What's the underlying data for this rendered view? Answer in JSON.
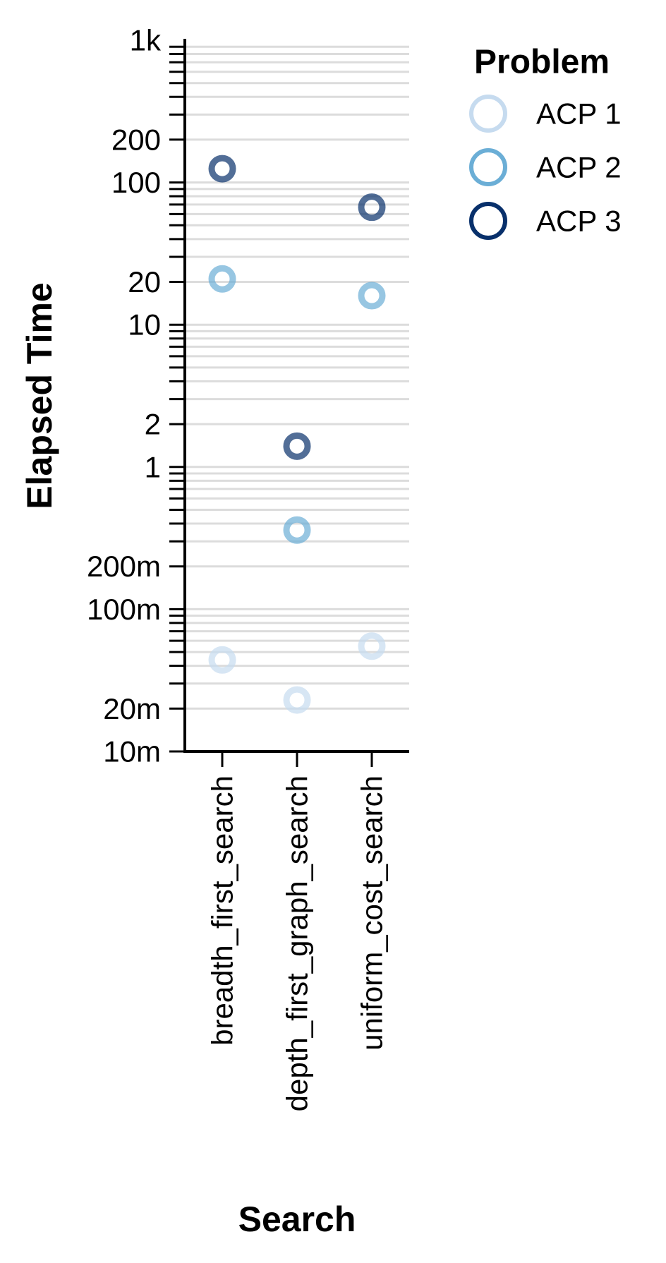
{
  "chart_data": {
    "type": "scatter",
    "xlabel": "Search",
    "ylabel": "Elapsed Time",
    "y_scale": "log",
    "ylim": [
      0.01,
      1000
    ],
    "y_ticks": [
      {
        "value": 1000,
        "label": "1k"
      },
      {
        "value": 200,
        "label": "200"
      },
      {
        "value": 100,
        "label": "100"
      },
      {
        "value": 20,
        "label": "20"
      },
      {
        "value": 10,
        "label": "10"
      },
      {
        "value": 2,
        "label": "2"
      },
      {
        "value": 1,
        "label": "1"
      },
      {
        "value": 0.2,
        "label": "200m"
      },
      {
        "value": 0.1,
        "label": "100m"
      },
      {
        "value": 0.02,
        "label": "20m"
      },
      {
        "value": 0.01,
        "label": "10m"
      }
    ],
    "grid": true,
    "categories": [
      "breadth_first_search",
      "depth_first_graph_search",
      "uniform_cost_search"
    ],
    "legend": {
      "title": "Problem",
      "position": "top-right"
    },
    "series": [
      {
        "name": "ACP 1",
        "color": "#c6dbef",
        "values": [
          0.044,
          0.023,
          0.055
        ]
      },
      {
        "name": "ACP 2",
        "color": "#6baed6",
        "values": [
          21,
          0.36,
          16
        ]
      },
      {
        "name": "ACP 3",
        "color": "#08306b",
        "values": [
          125,
          1.4,
          67
        ]
      }
    ]
  }
}
